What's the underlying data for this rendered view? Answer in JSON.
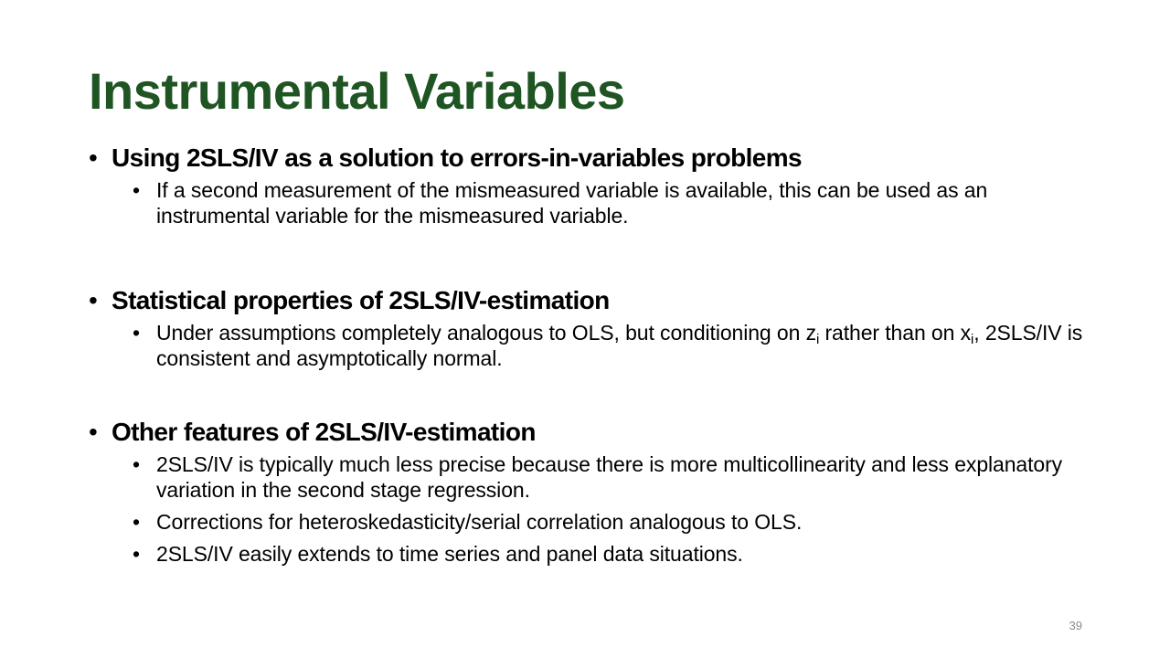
{
  "slide": {
    "title": "Instrumental Variables",
    "page_number": "39",
    "colors": {
      "title": "#1f5522",
      "text": "#000000",
      "page_number": "#8c8c8c"
    },
    "bullet_glyph": "•",
    "sections": [
      {
        "heading": "Using 2SLS/IV as a solution to errors-in-variables problems",
        "items": [
          "If a second measurement of the mismeasured variable is available, this can be used as an instrumental variable for the mismeasured variable."
        ]
      },
      {
        "heading": "Statistical properties of 2SLS/IV-estimation",
        "items": [
          {
            "part1": "Under assumptions completely analogous to OLS, but conditioning on z",
            "sub1": "i",
            "part2": " rather than on x",
            "sub2": "i",
            "part3": ", 2SLS/IV is consistent and asymptotically normal."
          }
        ]
      },
      {
        "heading": "Other features of 2SLS/IV-estimation",
        "items": [
          "2SLS/IV is typically much less precise because there is more multicollinearity and less explanatory variation in the second stage regression.",
          "Corrections for heteroskedasticity/serial correlation analogous to OLS.",
          "2SLS/IV easily extends to time series and panel data situations."
        ]
      }
    ]
  }
}
